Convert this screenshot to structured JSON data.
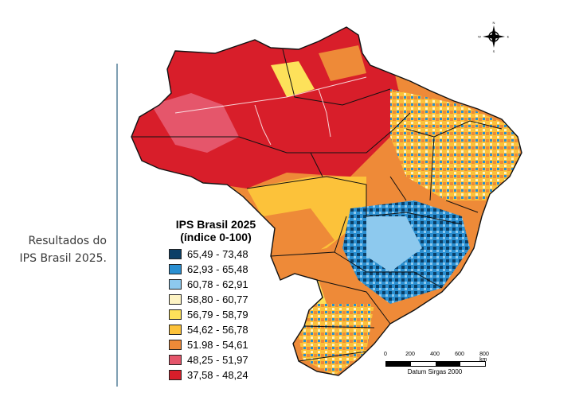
{
  "caption": {
    "line1": "Resultados do",
    "line2": "IPS Brasil 2025."
  },
  "legend": {
    "title_line1": "IPS Brasil 2025",
    "title_line2": "(índice 0-100)",
    "items": [
      {
        "label": "65,49 - 73,48",
        "color": "#0b3f67"
      },
      {
        "label": "62,93 - 65,48",
        "color": "#2a8fd1"
      },
      {
        "label": "60,78 - 62,91",
        "color": "#8dc9ee"
      },
      {
        "label": "58,80 - 60,77",
        "color": "#fdf3c3"
      },
      {
        "label": "56,79 - 58,79",
        "color": "#fde15a"
      },
      {
        "label": "54,62 - 56,78",
        "color": "#fcc23a"
      },
      {
        "label": "51.98 - 54,61",
        "color": "#ee8a38"
      },
      {
        "label": "48,25 - 51,97",
        "color": "#e5566b"
      },
      {
        "label": "37,58 - 48,24",
        "color": "#d81e2a"
      }
    ]
  },
  "scale": {
    "ticks": [
      "0",
      "200",
      "400",
      "600",
      "800 km"
    ],
    "datum": "Datum Sirgas 2000"
  },
  "compass": {
    "n": "N",
    "s": "S",
    "e": "E",
    "w": "W"
  }
}
